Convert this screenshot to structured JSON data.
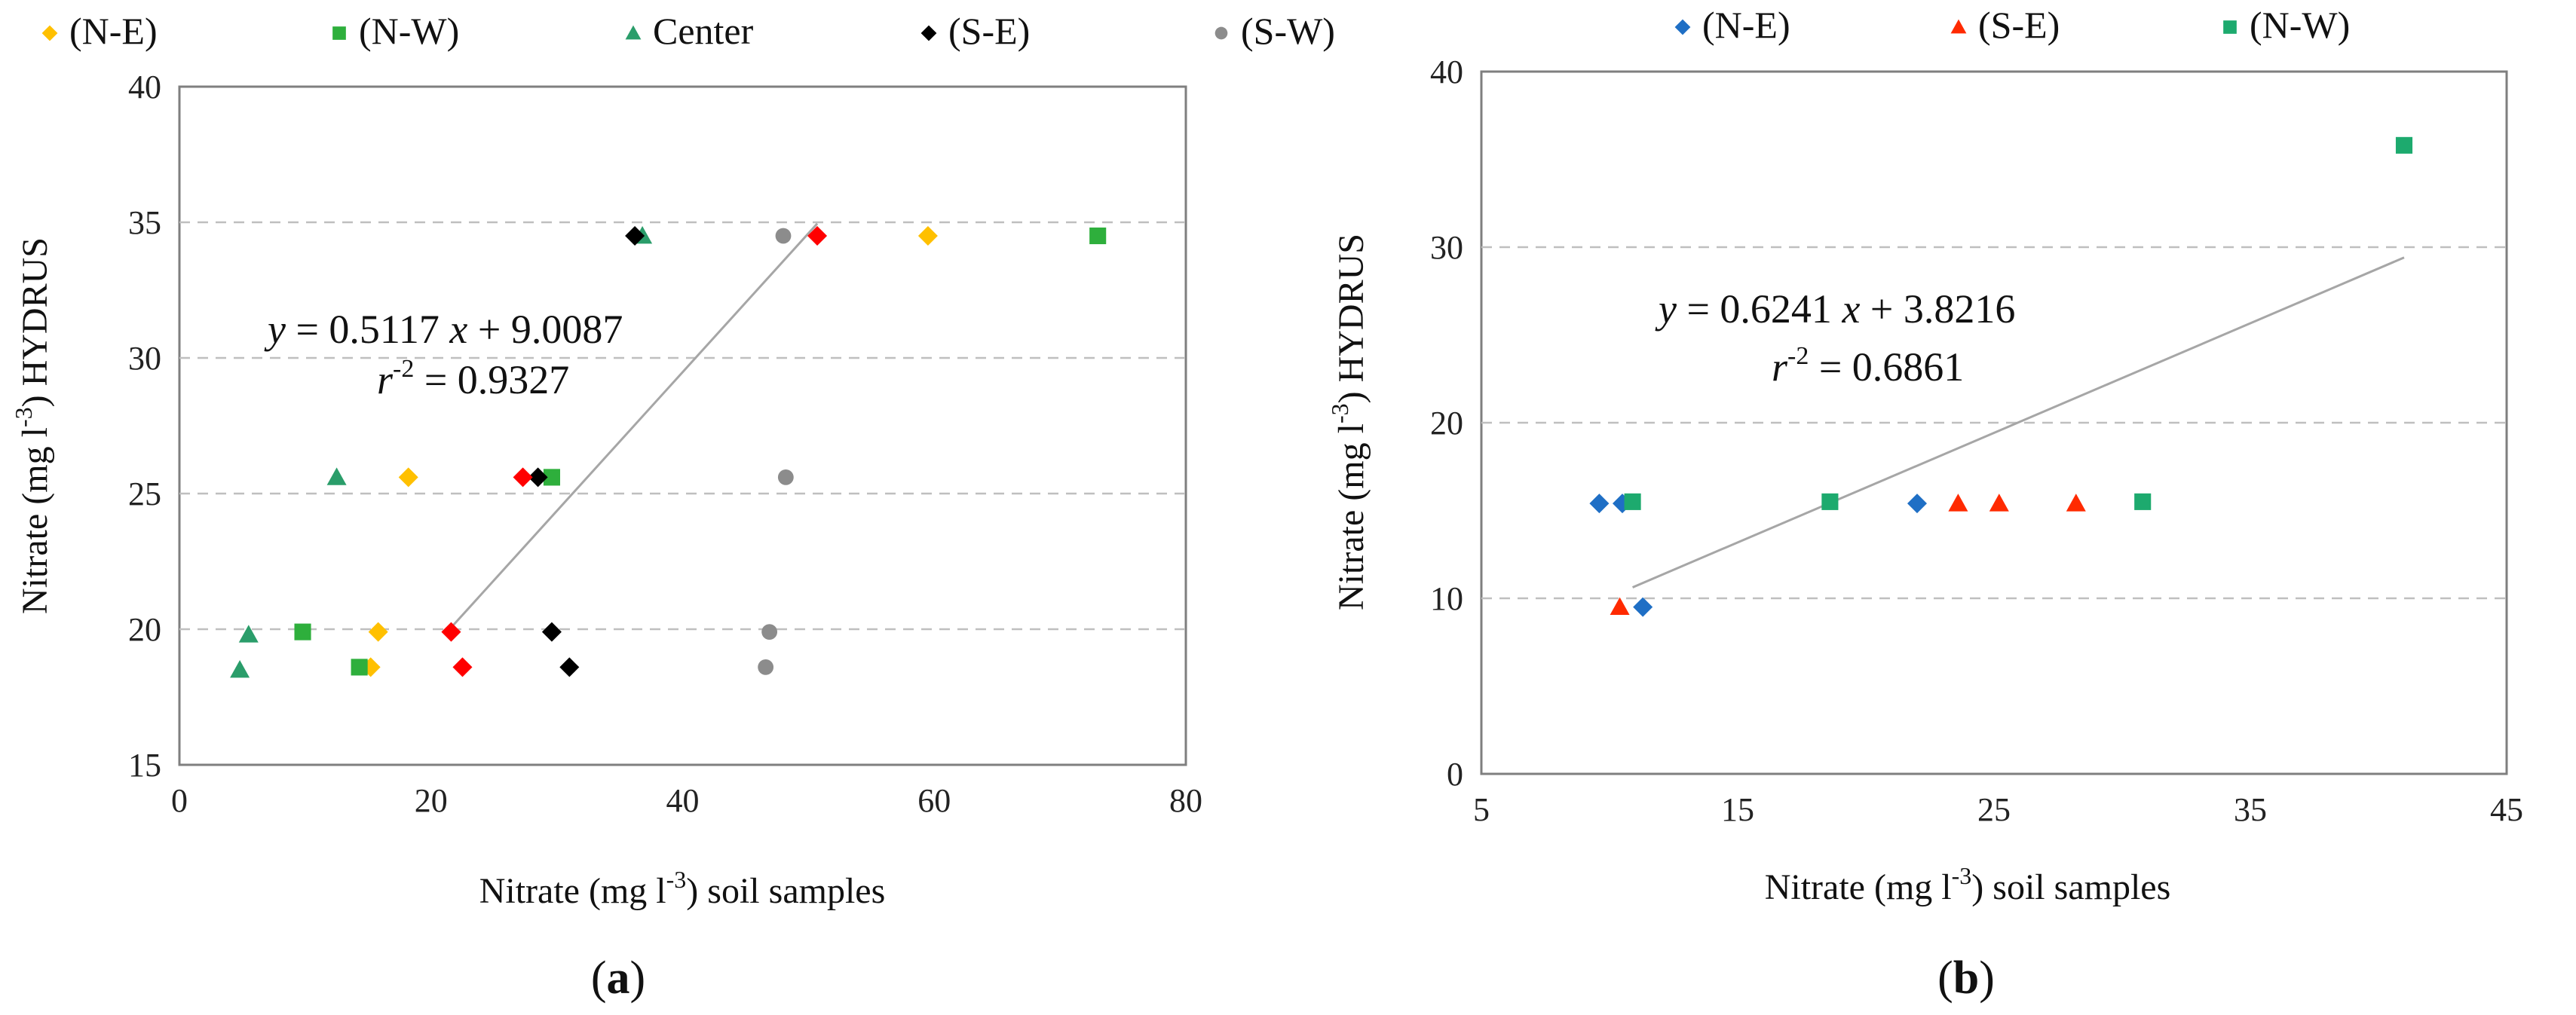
{
  "chart_data": [
    {
      "type": "scatter",
      "panel": "a",
      "caption_open": "(",
      "caption_letter": "a",
      "caption_close": ")",
      "xlabel": "Nitrate (mg l-3) soil samples",
      "xlabel_parts": {
        "pre": "Nitrate (mg l",
        "sup": "-3",
        "post": ") soil samples"
      },
      "ylabel": "Nitrate (mg l-3) HYDRUS",
      "ylabel_parts": {
        "pre": "Nitrate (mg l",
        "sup": "-3",
        "post": ") HYDRUS"
      },
      "xlim": [
        0,
        80
      ],
      "ylim": [
        15,
        40
      ],
      "xticks": [
        0,
        20,
        40,
        60,
        80
      ],
      "yticks": [
        15,
        20,
        25,
        30,
        35,
        40
      ],
      "grid": "horizontal dashed",
      "legend": "top",
      "series": [
        {
          "name": "(N-E)",
          "marker": "diamond",
          "color": "#FFC000",
          "points": [
            [
              18.2,
              25.6
            ],
            [
              15.8,
              19.9
            ],
            [
              15.2,
              18.6
            ],
            [
              59.5,
              34.5
            ]
          ]
        },
        {
          "name": "(N-W)",
          "marker": "square",
          "color": "#2EAF3C",
          "points": [
            [
              9.8,
              19.9
            ],
            [
              14.3,
              18.6
            ],
            [
              29.6,
              25.6
            ],
            [
              73.0,
              34.5
            ]
          ]
        },
        {
          "name": "Center",
          "marker": "triangle",
          "color": "#2A9D6A",
          "points": [
            [
              5.5,
              19.8
            ],
            [
              4.8,
              18.5
            ],
            [
              12.5,
              25.6
            ],
            [
              36.8,
              34.5
            ]
          ]
        },
        {
          "name": "(S-E)",
          "marker": "diamond",
          "color": "#000000",
          "points": [
            [
              36.2,
              34.5
            ],
            [
              28.5,
              25.6
            ],
            [
              29.6,
              19.9
            ],
            [
              31.0,
              18.6
            ]
          ]
        },
        {
          "name": "(S-W)",
          "marker": "circle",
          "color": "#8C8C8C",
          "points": [
            [
              48.0,
              34.5
            ],
            [
              48.2,
              25.6
            ],
            [
              46.9,
              19.9
            ],
            [
              46.6,
              18.6
            ]
          ]
        },
        {
          "name": "",
          "marker": "diamond",
          "color": "#FF0000",
          "points": [
            [
              50.7,
              34.5
            ],
            [
              27.3,
              25.6
            ],
            [
              21.6,
              19.9
            ],
            [
              22.5,
              18.6
            ]
          ]
        }
      ],
      "trendline": {
        "slope": 0.5117,
        "intercept": 9.0087,
        "x_range": [
          21.6,
          50.7
        ],
        "color": "#A6A6A6"
      },
      "equation": {
        "y": "y",
        "eq1": " = 0.5117 ",
        "x": "x",
        "eq2": " + 9.0087",
        "r": "r",
        "rsup": "-2",
        "eq3": " = 0.9327"
      }
    },
    {
      "type": "scatter",
      "panel": "b",
      "caption_open": "(",
      "caption_letter": "b",
      "caption_close": ")",
      "xlabel": "Nitrate (mg l-3) soil samples",
      "xlabel_parts": {
        "pre": "Nitrate (mg l",
        "sup": "-3",
        "post": ") soil samples"
      },
      "ylabel": "Nitrate (mg l-3) HYDRUS",
      "ylabel_parts": {
        "pre": "Nitrate (mg l",
        "sup": "-3",
        "post": ") HYDRUS"
      },
      "xlim": [
        5,
        45
      ],
      "ylim": [
        0,
        40
      ],
      "xticks": [
        5,
        15,
        25,
        35,
        45
      ],
      "yticks": [
        0,
        10,
        20,
        30,
        40
      ],
      "grid": "horizontal dashed",
      "legend": "top",
      "series": [
        {
          "name": "(N-E)",
          "marker": "diamond",
          "color": "#1F6FC5",
          "points": [
            [
              9.6,
              15.4
            ],
            [
              10.5,
              15.4
            ],
            [
              22.0,
              15.4
            ],
            [
              11.3,
              9.5
            ]
          ]
        },
        {
          "name": "(S-E)",
          "marker": "triangle",
          "color": "#FF2A00",
          "points": [
            [
              10.4,
              9.5
            ],
            [
              23.6,
              15.4
            ],
            [
              25.2,
              15.4
            ],
            [
              28.2,
              15.4
            ]
          ]
        },
        {
          "name": "(N-W)",
          "marker": "square",
          "color": "#1DAA6E",
          "points": [
            [
              10.9,
              15.5
            ],
            [
              18.6,
              15.5
            ],
            [
              30.8,
              15.5
            ],
            [
              41.0,
              35.8
            ]
          ]
        }
      ],
      "trendline": {
        "slope": 0.6241,
        "intercept": 3.8216,
        "x_range": [
          10.9,
          41.0
        ],
        "color": "#A6A6A6"
      },
      "equation": {
        "y": "y",
        "eq1": " = 0.6241 ",
        "x": "x",
        "eq2": " + 3.8216",
        "r": "r",
        "rsup": "-2",
        "eq3": " = 0.6861"
      }
    }
  ]
}
